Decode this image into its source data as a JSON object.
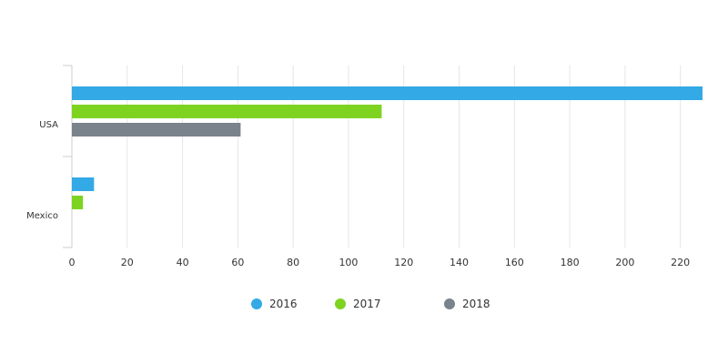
{
  "chart_data": {
    "type": "bar",
    "orientation": "horizontal",
    "categories": [
      "USA",
      "Mexico"
    ],
    "series": [
      {
        "name": "2016",
        "color": "#33a9e6",
        "values": [
          228,
          8
        ]
      },
      {
        "name": "2017",
        "color": "#7ed321",
        "values": [
          112,
          4
        ]
      },
      {
        "name": "2018",
        "color": "#7a838c",
        "values": [
          61,
          0
        ]
      }
    ],
    "xticks": [
      "0",
      "20",
      "40",
      "60",
      "80",
      "100",
      "120",
      "140",
      "160",
      "180",
      "200",
      "220"
    ],
    "xlim": [
      0,
      228
    ],
    "grid": true,
    "legend_position": "bottom-center",
    "title": "",
    "xlabel": "",
    "ylabel": ""
  }
}
